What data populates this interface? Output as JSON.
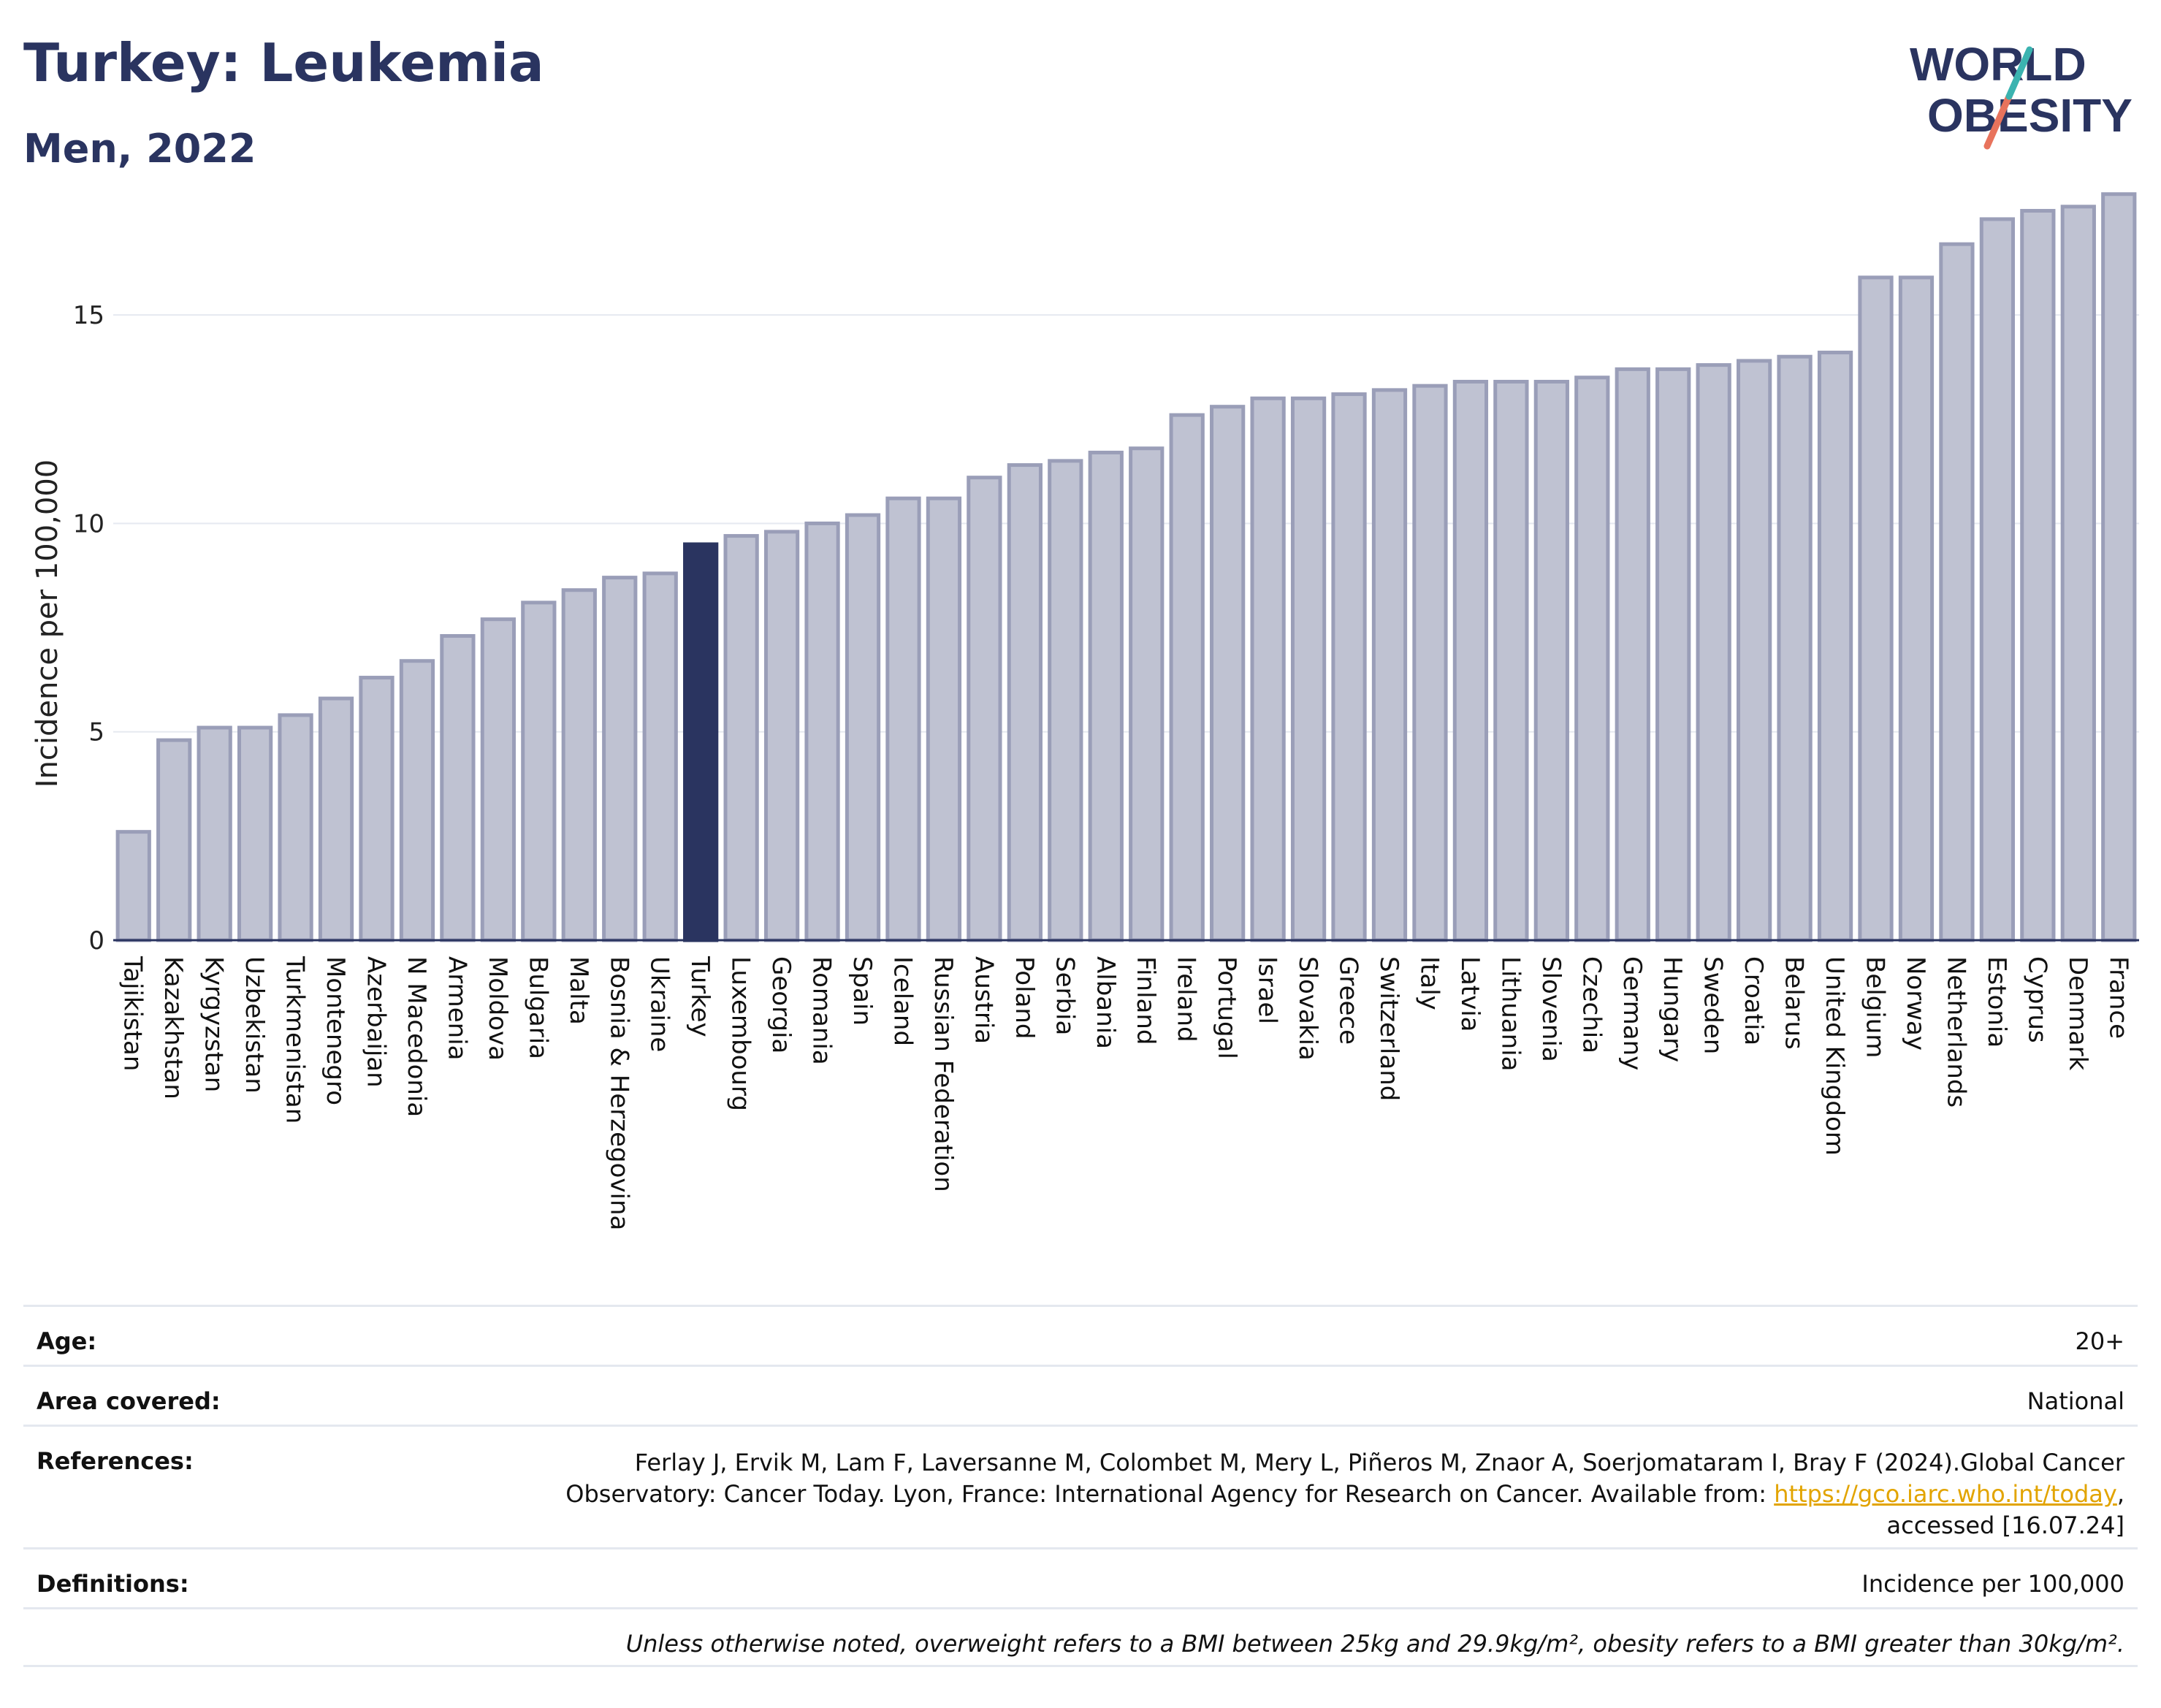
{
  "header": {
    "title": "Turkey: Leukemia",
    "subtitle": "Men, 2022"
  },
  "logo": {
    "line1": "WORLD",
    "line2": "OBESITY"
  },
  "chart_data": {
    "type": "bar",
    "title": "Turkey: Leukemia",
    "subtitle": "Men, 2022",
    "xlabel": "",
    "ylabel": "Incidence per 100,000",
    "ylim": [
      0,
      18
    ],
    "yticks": [
      0,
      5,
      10,
      15
    ],
    "grid": true,
    "highlight": "Turkey",
    "colors": {
      "bar": "#bfc2d2",
      "bar_stroke": "#9a9eb8",
      "highlight": "#2a3460",
      "grid": "#e6e9f0",
      "axis": "#2a3460"
    },
    "categories": [
      "Tajikistan",
      "Kazakhstan",
      "Kyrgyzstan",
      "Uzbekistan",
      "Turkmenistan",
      "Montenegro",
      "Azerbaijan",
      "N Macedonia",
      "Armenia",
      "Moldova",
      "Bulgaria",
      "Malta",
      "Bosnia & Herzegovina",
      "Ukraine",
      "Turkey",
      "Luxembourg",
      "Georgia",
      "Romania",
      "Spain",
      "Iceland",
      "Russian Federation",
      "Austria",
      "Poland",
      "Serbia",
      "Albania",
      "Finland",
      "Ireland",
      "Portugal",
      "Israel",
      "Slovakia",
      "Greece",
      "Switzerland",
      "Italy",
      "Latvia",
      "Lithuania",
      "Slovenia",
      "Czechia",
      "Germany",
      "Hungary",
      "Sweden",
      "Croatia",
      "Belarus",
      "United Kingdom",
      "Belgium",
      "Norway",
      "Netherlands",
      "Estonia",
      "Cyprus",
      "Denmark",
      "France"
    ],
    "values": [
      2.6,
      4.8,
      5.1,
      5.1,
      5.4,
      5.8,
      6.3,
      6.7,
      7.3,
      7.7,
      8.1,
      8.4,
      8.7,
      8.8,
      9.5,
      9.7,
      9.8,
      10.0,
      10.2,
      10.6,
      10.6,
      11.1,
      11.4,
      11.5,
      11.7,
      11.8,
      12.6,
      12.8,
      13.0,
      13.0,
      13.1,
      13.2,
      13.3,
      13.4,
      13.4,
      13.4,
      13.5,
      13.7,
      13.7,
      13.8,
      13.9,
      14.0,
      14.1,
      15.9,
      15.9,
      16.7,
      17.3,
      17.5,
      17.6,
      17.9
    ]
  },
  "meta": {
    "age_label": "Age:",
    "age_value": "20+",
    "area_label": "Area covered:",
    "area_value": "National",
    "references_label": "References:",
    "references_text_1": "Ferlay J, Ervik M, Lam F, Laversanne M, Colombet M, Mery L, Piñeros M, Znaor A, Soerjomataram I, Bray F (2024).Global Cancer",
    "references_text_2": "Observatory: Cancer Today. Lyon, France: International Agency for Research on Cancer. Available from: ",
    "references_link": "https://gco.iarc.who.int/today",
    "references_text_3": ",",
    "references_text_4": "accessed [16.07.24]",
    "definitions_label": "Definitions:",
    "definitions_value": "Incidence per 100,000",
    "note": "Unless otherwise noted, overweight refers to a BMI between 25kg and 29.9kg/m², obesity refers to a BMI greater than 30kg/m²."
  }
}
